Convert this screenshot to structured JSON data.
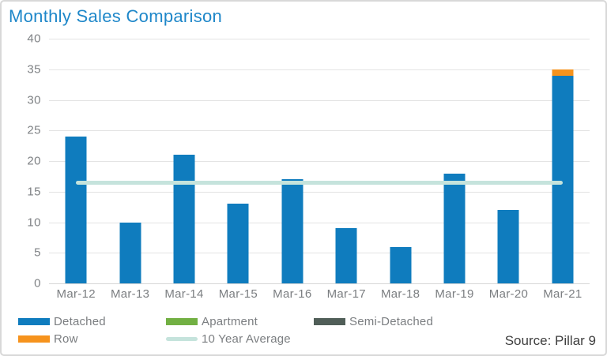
{
  "title": "Monthly Sales Comparison",
  "source_note": "Source: Pillar 9",
  "colors": {
    "title": "#1e87c9",
    "axis_text": "#7b7e81",
    "gridline": "#e3e3e3",
    "detached": "#0f7cbe",
    "row": "#f6931d",
    "apartment": "#72b043",
    "semi_detached": "#505e58",
    "average_line": "#c5e3dc"
  },
  "legend": {
    "items": [
      {
        "label": "Detached",
        "color": "#0f7cbe",
        "shape": "bar"
      },
      {
        "label": "Apartment",
        "color": "#72b043",
        "shape": "bar"
      },
      {
        "label": "Semi-Detached",
        "color": "#505e58",
        "shape": "bar"
      },
      {
        "label": "Row",
        "color": "#f6931d",
        "shape": "bar"
      },
      {
        "label": "10 Year Average",
        "color": "#c5e3dc",
        "shape": "line"
      }
    ]
  },
  "chart_data": {
    "type": "bar",
    "stacked": true,
    "title": "Monthly Sales Comparison",
    "xlabel": "",
    "ylabel": "",
    "categories": [
      "Mar-12",
      "Mar-13",
      "Mar-14",
      "Mar-15",
      "Mar-16",
      "Mar-17",
      "Mar-18",
      "Mar-19",
      "Mar-20",
      "Mar-21"
    ],
    "series": [
      {
        "name": "Detached",
        "color": "#0f7cbe",
        "values": [
          24,
          10,
          21,
          13,
          17,
          9,
          6,
          18,
          12,
          34
        ]
      },
      {
        "name": "Row",
        "color": "#f6931d",
        "values": [
          0,
          0,
          0,
          0,
          0,
          0,
          0,
          0,
          0,
          1
        ]
      },
      {
        "name": "Apartment",
        "color": "#72b043",
        "values": [
          0,
          0,
          0,
          0,
          0,
          0,
          0,
          0,
          0,
          0
        ]
      },
      {
        "name": "Semi-Detached",
        "color": "#505e58",
        "values": [
          0,
          0,
          0,
          0,
          0,
          0,
          0,
          0,
          0,
          0
        ]
      }
    ],
    "average_line": {
      "label": "10 Year Average",
      "value": 16.5,
      "color": "#c5e3dc"
    },
    "ylim": [
      0,
      40
    ],
    "ytick_step": 5,
    "grid": true,
    "legend_position": "bottom"
  }
}
